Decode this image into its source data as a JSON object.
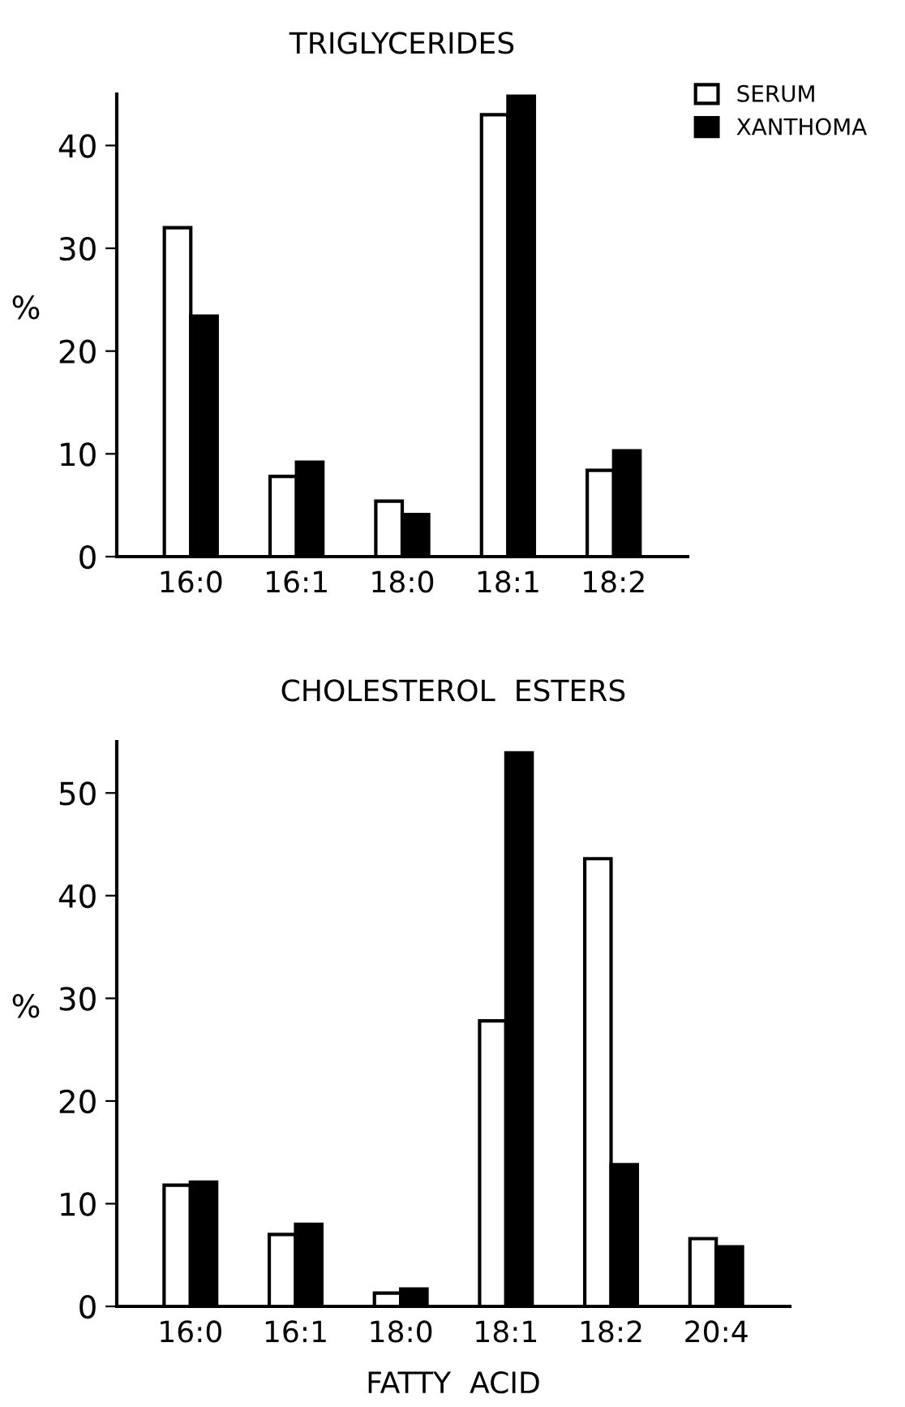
{
  "chart_data": [
    {
      "type": "bar",
      "title": "TRIGLYCERIDES",
      "ylabel": "%",
      "categories": [
        "16:0",
        "16:1",
        "18:0",
        "18:1",
        "18:2"
      ],
      "series": [
        {
          "name": "SERUM",
          "color": "#ffffff",
          "values": [
            32,
            7.8,
            5.4,
            43,
            8.4
          ]
        },
        {
          "name": "XANTHOMA",
          "color": "#000000",
          "values": [
            23.4,
            9.2,
            4.1,
            44.8,
            10.3
          ]
        }
      ],
      "ylim": [
        0,
        45
      ],
      "yticks": [
        0,
        10,
        20,
        30,
        40
      ],
      "grid": false,
      "legend": "top right"
    },
    {
      "type": "bar",
      "title": "CHOLESTEROL  ESTERS",
      "ylabel": "%",
      "xlabel": "FATTY  ACID",
      "categories": [
        "16:0",
        "16:1",
        "18:0",
        "18:1",
        "18:2",
        "20:4"
      ],
      "series": [
        {
          "color": "#ffffff",
          "values": [
            11.8,
            7,
            1.3,
            27.8,
            43.6,
            6.6
          ]
        },
        {
          "color": "#000000",
          "values": [
            12.1,
            8,
            1.7,
            53.9,
            13.8,
            5.8
          ]
        }
      ],
      "ylim": [
        0,
        55
      ],
      "yticks": [
        0,
        10,
        20,
        30,
        40,
        50
      ],
      "grid": false
    }
  ]
}
